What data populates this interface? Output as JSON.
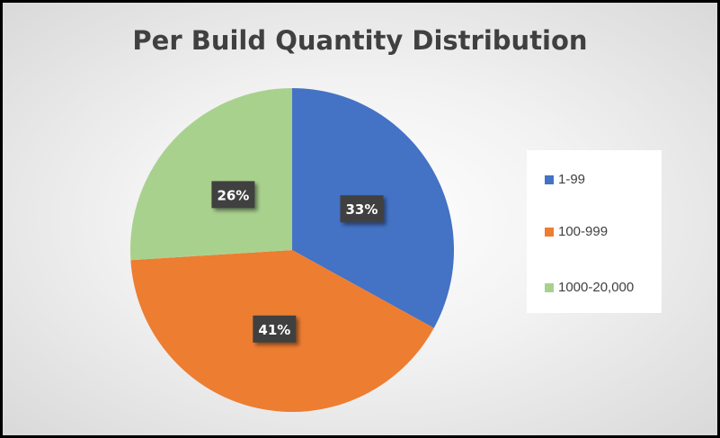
{
  "chart_data": {
    "type": "pie",
    "title": "Per Build Quantity Distribution",
    "categories": [
      "1-99",
      "100-999",
      "1000-20,000"
    ],
    "values": [
      33,
      41,
      26
    ],
    "data_labels": [
      "33%",
      "41%",
      "26%"
    ],
    "colors": [
      "#4472c4",
      "#ed7d31",
      "#a9d18e"
    ],
    "start_angle": "top, clockwise",
    "legend_position": "right"
  }
}
